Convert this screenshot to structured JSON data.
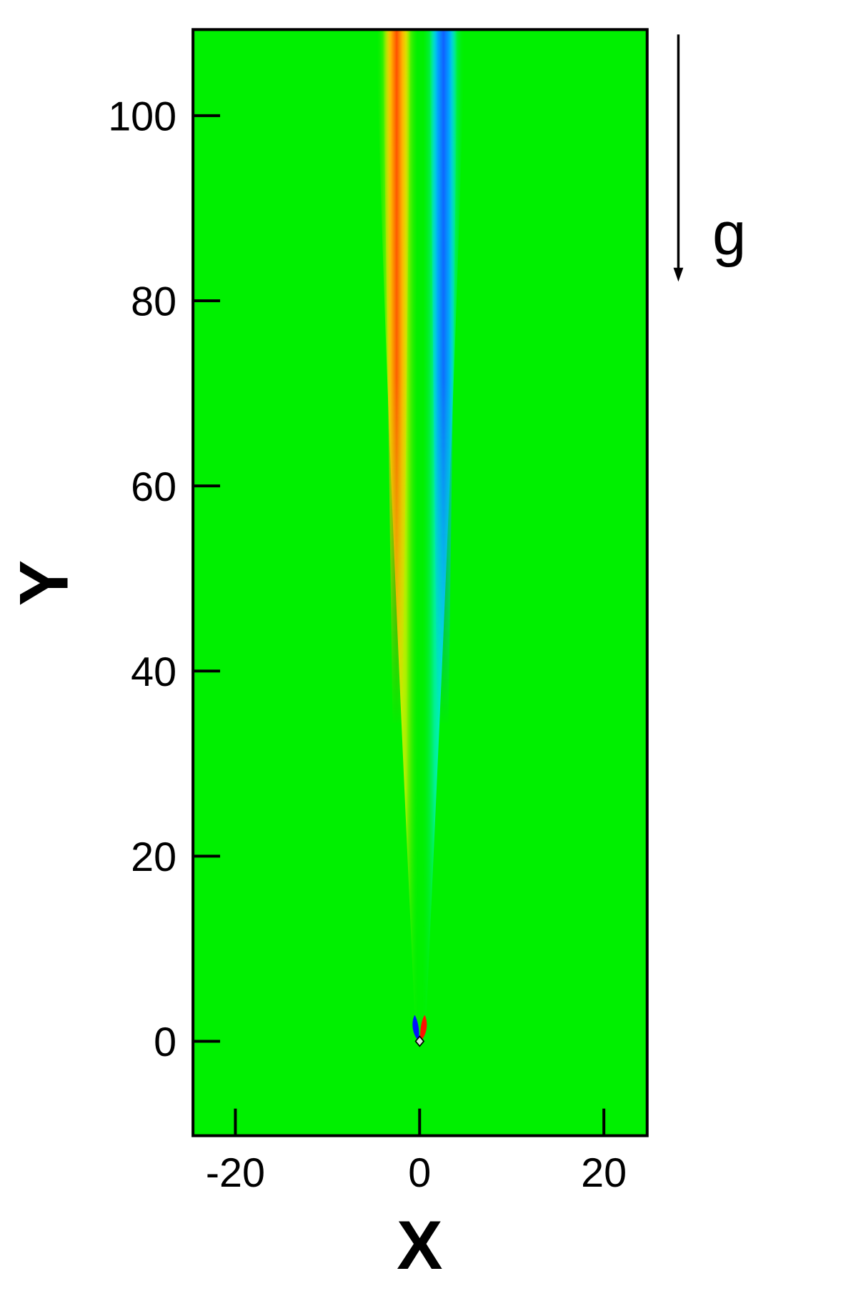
{
  "chart_data": {
    "type": "contour",
    "xlabel": "X",
    "ylabel": "Y",
    "annotation": "g",
    "xlim": [
      -24.6,
      24.7
    ],
    "ylim": [
      -10.2,
      109.3
    ],
    "xticks": [
      -20,
      0,
      20
    ],
    "yticks": [
      0,
      20,
      40,
      60,
      80,
      100
    ],
    "background": "#00f000"
  }
}
